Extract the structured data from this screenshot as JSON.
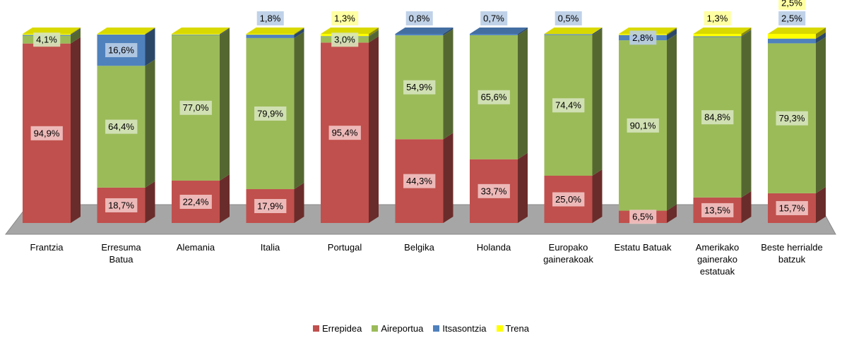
{
  "chart_data": {
    "type": "bar",
    "stacked": true,
    "categories": [
      "Frantzia",
      "Erresuma Batua",
      "Alemania",
      "Italia",
      "Portugal",
      "Belgika",
      "Holanda",
      "Europako gainerakoak",
      "Estatu Batuak",
      "Amerikako gainerako estatuak",
      "Beste herrialde batzuk"
    ],
    "ylim": [
      0,
      100
    ],
    "series": [
      {
        "name": "Errepidea",
        "color": "#c0504d",
        "values": [
          94.9,
          18.7,
          22.4,
          17.9,
          95.4,
          44.3,
          33.7,
          25.0,
          6.5,
          13.5,
          15.7
        ],
        "value_labels": [
          "94,9%",
          "18,7%",
          "22,4%",
          "17,9%",
          "95,4%",
          "44,3%",
          "33,7%",
          "25,0%",
          "6,5%",
          "13,5%",
          "15,7%"
        ]
      },
      {
        "name": "Aireportua",
        "color": "#9bbb59",
        "values": [
          4.1,
          64.4,
          77.0,
          79.9,
          3.0,
          54.9,
          65.6,
          74.4,
          90.1,
          84.8,
          79.3
        ],
        "value_labels": [
          "4,1%",
          "64,4%",
          "77,0%",
          "79,9%",
          "3,0%",
          "54,9%",
          "65,6%",
          "74,4%",
          "90,1%",
          "84,8%",
          "79,3%"
        ]
      },
      {
        "name": "Itsasontzia",
        "color": "#4f81bd",
        "values": [
          0.5,
          16.6,
          0.3,
          1.8,
          0.3,
          0.8,
          0.7,
          0.5,
          2.8,
          0.4,
          2.5
        ],
        "value_labels": [
          null,
          "16,6%",
          null,
          "1,8%",
          null,
          "0,8%",
          "0,7%",
          "0,5%",
          "2,8%",
          null,
          "2,5%"
        ]
      },
      {
        "name": "Trena",
        "color": "#ffff00",
        "values": [
          0.5,
          0.3,
          0.3,
          0.4,
          1.3,
          0,
          0,
          0.1,
          0.6,
          1.3,
          2.5
        ],
        "value_labels": [
          null,
          null,
          null,
          null,
          "1,3%",
          null,
          null,
          null,
          null,
          "1,3%",
          "2,5%"
        ]
      }
    ]
  }
}
